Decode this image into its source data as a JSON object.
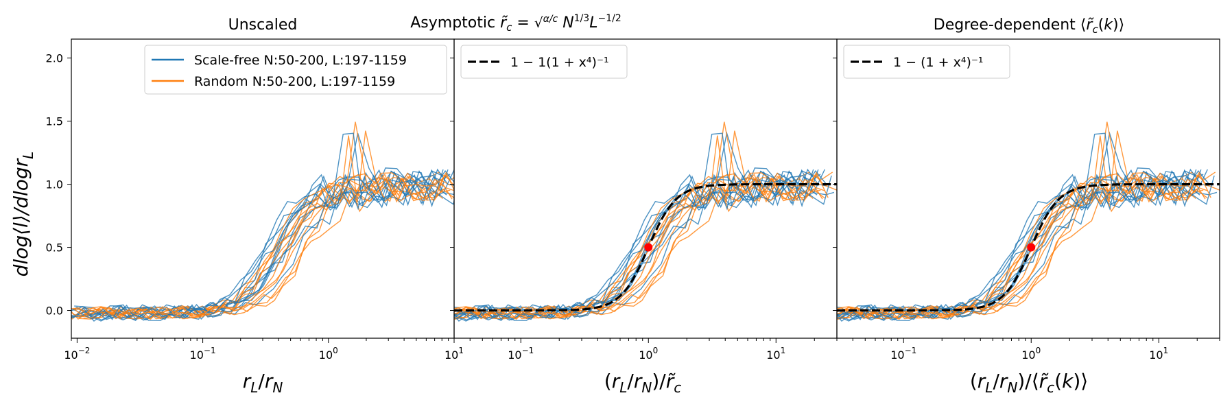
{
  "figure": {
    "ylabel": "dlog⟨l⟩/dlogr",
    "ylabel_sub": "L",
    "yticks": [
      "0.0",
      "0.5",
      "1.0",
      "1.5",
      "2.0"
    ],
    "ylim": [
      -0.22,
      2.15
    ]
  },
  "colors": {
    "scale_free": "#1f77b4",
    "random": "#ff7f0e",
    "fit": "#000000",
    "midpoint": "#ff0000"
  },
  "chart_data": [
    {
      "type": "line",
      "title": "Unscaled",
      "xscale": "log",
      "xlim": [
        0.009,
        10
      ],
      "xlabel": "r_L/r_N",
      "xticks": [
        {
          "value": 0.01,
          "base": "10",
          "exp": "−2"
        },
        {
          "value": 0.1,
          "base": "10",
          "exp": "−1"
        },
        {
          "value": 1,
          "base": "10",
          "exp": "0"
        },
        {
          "value": 10,
          "base": "10",
          "exp": "1"
        }
      ],
      "legend": {
        "position": "top-right",
        "entries": [
          {
            "label": "Scale-free N:50-200, L:197-1159",
            "style": "solid",
            "color": "#1f77b4"
          },
          {
            "label": "Random N:50-200, L:197-1159",
            "style": "solid",
            "color": "#ff7f0e"
          }
        ]
      },
      "x_shift": 1,
      "fit": null
    },
    {
      "type": "line",
      "title": "Asymptotic r̃_c = sqrt(α/c) N^(1/3) L^(−1/2)",
      "xscale": "log",
      "xlim": [
        0.03,
        30
      ],
      "xlabel": "(r_L/r_N)/r̃_c",
      "xticks": [
        {
          "value": 0.1,
          "base": "10",
          "exp": "−1"
        },
        {
          "value": 1,
          "base": "10",
          "exp": "0"
        },
        {
          "value": 10,
          "base": "10",
          "exp": "1"
        }
      ],
      "legend": {
        "position": "top-left",
        "entries": [
          {
            "label": "1 − 1(1 + x⁴)⁻¹",
            "style": "dashed",
            "color": "#000000"
          }
        ]
      },
      "x_shift": 2.4,
      "fit": {
        "formula": "1-(1+x^4)^-1",
        "midpoint": [
          1,
          0.5
        ]
      }
    },
    {
      "type": "line",
      "title": "Degree-dependent ⟨r̃_c(k)⟩",
      "xscale": "log",
      "xlim": [
        0.03,
        30
      ],
      "xlabel": "(r_L/r_N)/⟨r̃_c(k)⟩",
      "xticks": [
        {
          "value": 0.1,
          "base": "10",
          "exp": "−1"
        },
        {
          "value": 1,
          "base": "10",
          "exp": "0"
        },
        {
          "value": 10,
          "base": "10",
          "exp": "1"
        }
      ],
      "legend": {
        "position": "top-left",
        "entries": [
          {
            "label": "1 − (1 + x⁴)⁻¹",
            "style": "dashed",
            "color": "#000000"
          }
        ]
      },
      "x_shift": 2.4,
      "fit": {
        "formula": "1-(1+x^4)^-1",
        "midpoint": [
          1,
          0.5
        ]
      }
    }
  ]
}
